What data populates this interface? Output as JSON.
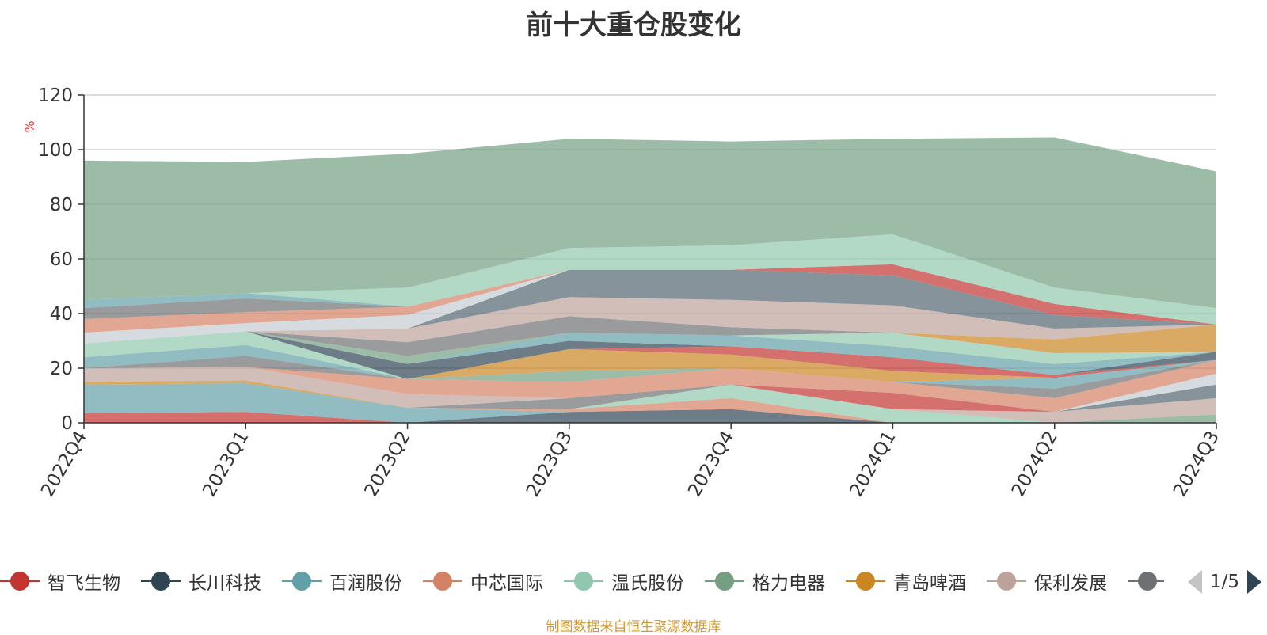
{
  "title": "前十大重仓股变化",
  "source_note": "制图数据来自恒生聚源数据库",
  "legend": {
    "pager_text": "1/5",
    "items": [
      {
        "label": "智飞生物",
        "color": "#c23531"
      },
      {
        "label": "长川科技",
        "color": "#2f4554"
      },
      {
        "label": "百润股份",
        "color": "#61a0a8"
      },
      {
        "label": "中芯国际",
        "color": "#d48265"
      },
      {
        "label": "温氏股份",
        "color": "#91c7ae"
      },
      {
        "label": "格力电器",
        "color": "#749f83"
      },
      {
        "label": "青岛啤酒",
        "color": "#ca8622"
      },
      {
        "label": "保利发展",
        "color": "#bda29a"
      },
      {
        "label": "",
        "color": "#6e7074"
      }
    ]
  },
  "chart_data": {
    "type": "area",
    "stacked": true,
    "ylabel": "%",
    "ylim": [
      0,
      120
    ],
    "yticks": [
      0,
      20,
      40,
      60,
      80,
      100,
      120
    ],
    "grid": true,
    "categories": [
      "2022Q4",
      "2023Q1",
      "2023Q2",
      "2023Q3",
      "2023Q4",
      "2024Q1",
      "2024Q2",
      "2024Q3"
    ],
    "series": [
      {
        "color": "#c23531",
        "values": [
          3.5,
          4,
          0,
          0,
          0,
          0,
          0,
          0
        ]
      },
      {
        "color": "#2f4554",
        "values": [
          0,
          0,
          0,
          4,
          5,
          0,
          0,
          0
        ]
      },
      {
        "color": "#61a0a8",
        "values": [
          10.5,
          10.5,
          5.5,
          0,
          0,
          0,
          0,
          0
        ]
      },
      {
        "color": "#d48265",
        "values": [
          0,
          0,
          0,
          1,
          4,
          0,
          0,
          0
        ]
      },
      {
        "color": "#91c7ae",
        "values": [
          0,
          0,
          0,
          0,
          5,
          5,
          0,
          0
        ]
      },
      {
        "color": "#749f83",
        "values": [
          0,
          0,
          0,
          0,
          0,
          0,
          0,
          3
        ]
      },
      {
        "color": "#ca8622",
        "values": [
          1,
          1,
          0,
          0,
          0,
          0,
          0,
          0
        ]
      },
      {
        "color": "#bda29a",
        "values": [
          0,
          0,
          0,
          0,
          0,
          0,
          4,
          6
        ]
      },
      {
        "color": "#6e7074",
        "values": [
          0,
          0,
          0,
          4,
          0,
          0,
          0,
          0
        ]
      },
      {
        "color": "#546570",
        "values": [
          0,
          0,
          0,
          0,
          0,
          0,
          0,
          5
        ]
      },
      {
        "color": "#c4ccd3",
        "values": [
          0,
          0,
          0,
          0,
          0,
          0,
          0,
          4
        ]
      },
      {
        "color": "#c23531",
        "values": [
          0,
          0,
          0,
          0,
          0,
          6,
          0,
          0
        ]
      },
      {
        "color": "#bda29a",
        "values": [
          5,
          5,
          5,
          0,
          0,
          0,
          0,
          0
        ]
      },
      {
        "color": "#d48265",
        "values": [
          0,
          0,
          5.5,
          6,
          6,
          4,
          5,
          5
        ]
      },
      {
        "color": "#6e7074",
        "values": [
          0,
          0,
          0,
          0,
          0,
          0,
          3.5,
          0
        ]
      },
      {
        "color": "#61a0a8",
        "values": [
          0,
          0,
          0,
          0,
          0,
          0,
          4,
          0
        ]
      },
      {
        "color": "#749f83",
        "values": [
          0,
          0,
          0,
          4,
          0,
          0,
          0,
          0
        ]
      },
      {
        "color": "#ca8622",
        "values": [
          0,
          0,
          0,
          8,
          5,
          4,
          0,
          0
        ]
      },
      {
        "color": "#6e7074",
        "values": [
          0,
          4,
          0,
          0,
          0,
          0,
          0,
          0
        ]
      },
      {
        "color": "#61a0a8",
        "values": [
          4,
          4,
          0,
          0,
          0,
          0,
          0,
          0
        ]
      },
      {
        "color": "#91c7ae",
        "values": [
          5,
          5,
          0,
          0,
          0,
          0,
          0,
          0
        ]
      },
      {
        "color": "#c23531",
        "values": [
          0,
          0,
          0,
          0,
          3,
          5,
          1,
          0
        ]
      },
      {
        "color": "#2f4554",
        "values": [
          0,
          0,
          5.5,
          3,
          0,
          0,
          0,
          3
        ]
      },
      {
        "color": "#61a0a8",
        "values": [
          0,
          0,
          0,
          3,
          4,
          4,
          4,
          0
        ]
      },
      {
        "color": "#91c7ae",
        "values": [
          0,
          0,
          0,
          0,
          0,
          5,
          4,
          0
        ]
      },
      {
        "color": "#ca8622",
        "values": [
          0,
          0,
          0,
          0,
          0,
          0,
          5,
          10
        ]
      },
      {
        "color": "#749f83",
        "values": [
          0,
          0,
          3,
          0,
          0,
          0,
          0,
          0
        ]
      },
      {
        "color": "#6e7074",
        "values": [
          0,
          0,
          5,
          6,
          3,
          0,
          0,
          0
        ]
      },
      {
        "color": "#bda29a",
        "values": [
          0,
          0,
          5,
          7,
          10,
          10,
          4,
          0
        ]
      },
      {
        "color": "#546570",
        "values": [
          0,
          0,
          0,
          10,
          11,
          11,
          5,
          0
        ]
      },
      {
        "color": "#c23531",
        "values": [
          0,
          0,
          0,
          0,
          0,
          4,
          4,
          0
        ]
      },
      {
        "color": "#c4ccd3",
        "values": [
          4,
          3,
          5,
          0,
          0,
          0,
          0,
          0
        ]
      },
      {
        "color": "#d48265",
        "values": [
          5,
          4,
          3,
          0,
          0,
          0,
          0,
          0
        ]
      },
      {
        "color": "#6e7074",
        "values": [
          4,
          5,
          0,
          0,
          0,
          0,
          0,
          0
        ]
      },
      {
        "color": "#61a0a8",
        "values": [
          3,
          2,
          0,
          0,
          0,
          0,
          0,
          0
        ]
      },
      {
        "color": "#91c7ae",
        "values": [
          0,
          0,
          7,
          8,
          9,
          11,
          6,
          6
        ]
      },
      {
        "color": "#749f83",
        "values": [
          51,
          48,
          49,
          40,
          38,
          35,
          55,
          50
        ]
      }
    ]
  }
}
